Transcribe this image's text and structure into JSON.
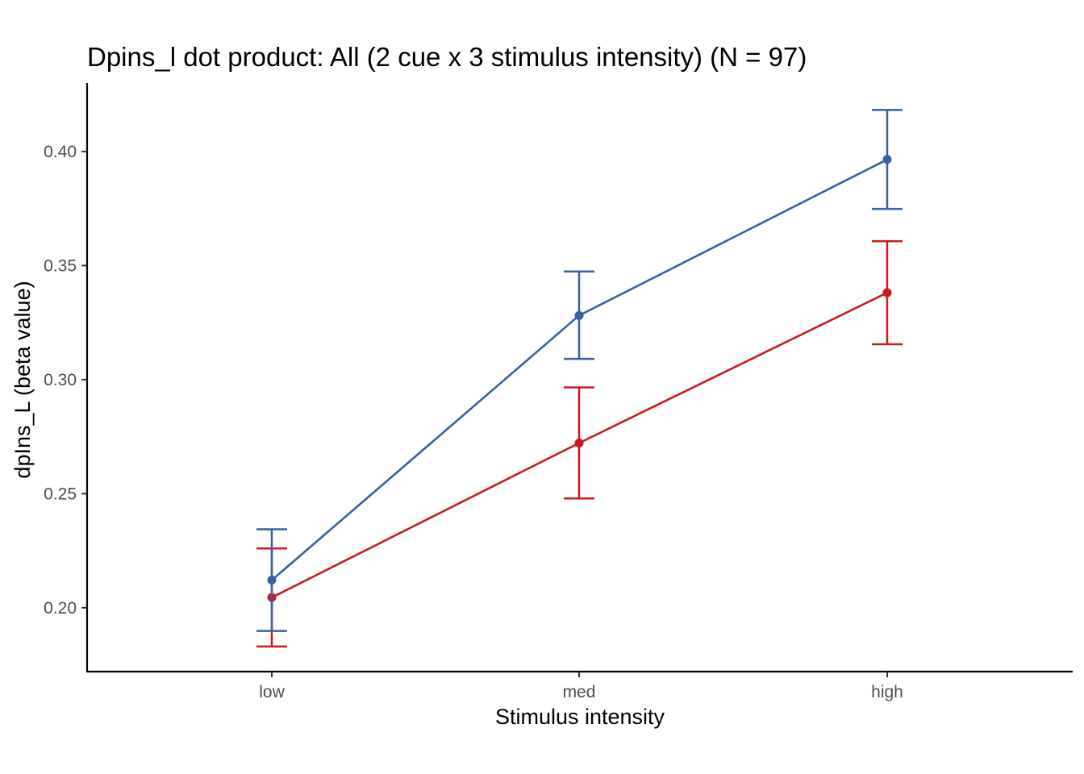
{
  "chart_data": {
    "type": "line",
    "title": "Dpins_l dot product: All (2 cue x 3 stimulus intensity) (N = 97)",
    "xlabel": "Stimulus intensity",
    "ylabel": "dpIns_L  (beta value)",
    "categories": [
      "low",
      "med",
      "high"
    ],
    "y_ticks": [
      0.2,
      0.25,
      0.3,
      0.35,
      0.4
    ],
    "y_tick_labels": [
      "0.20",
      "0.25",
      "0.30",
      "0.35",
      "0.40"
    ],
    "ylim": [
      0.172,
      0.43
    ],
    "grid": false,
    "legend": "none",
    "series": [
      {
        "color": "#cb181d",
        "values": [
          0.2045,
          0.2722,
          0.3381
        ],
        "error_low": [
          0.183,
          0.2479,
          0.3155
        ],
        "error_high": [
          0.226,
          0.2966,
          0.3607
        ]
      },
      {
        "color": "#3761a3",
        "values": [
          0.2121,
          0.3281,
          0.3965
        ],
        "error_low": [
          0.1898,
          0.3091,
          0.3748
        ],
        "error_high": [
          0.2344,
          0.3474,
          0.4182
        ]
      }
    ]
  }
}
